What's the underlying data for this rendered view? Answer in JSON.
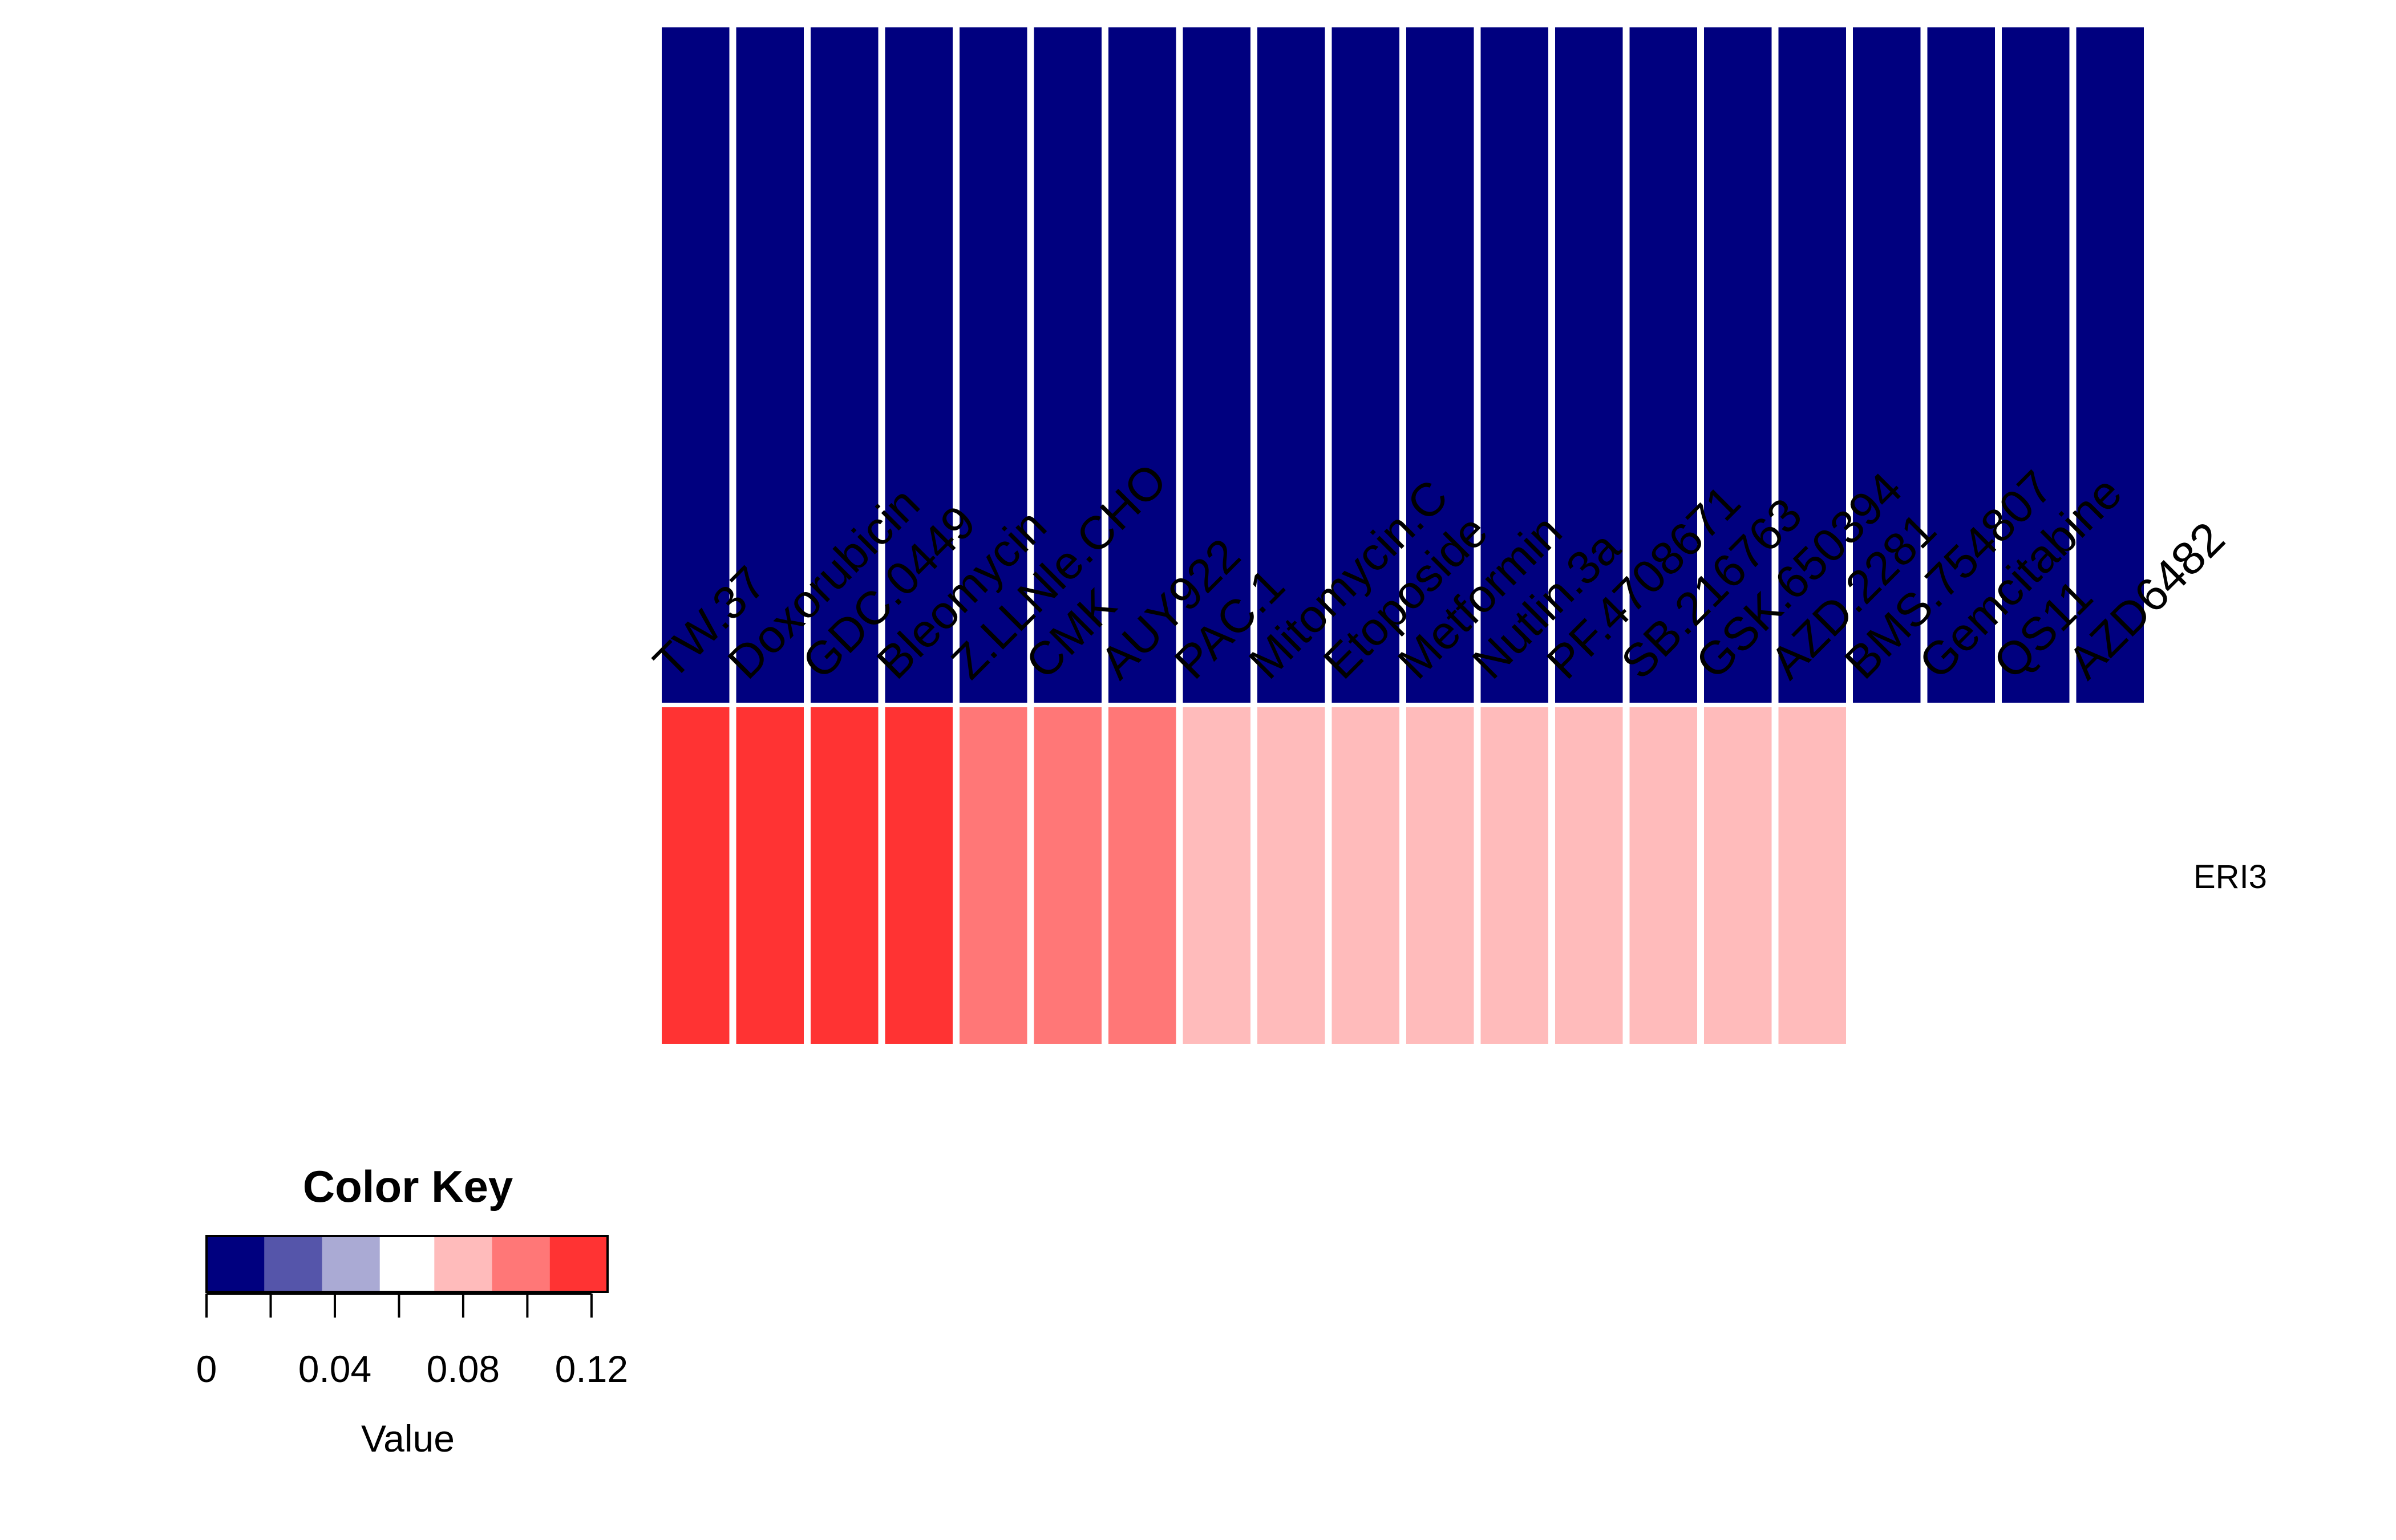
{
  "chart_data": {
    "type": "heatmap",
    "columns": [
      "TW.37",
      "Doxorubicin",
      "GDC.0449",
      "Bleomycin",
      "Z.LLNle.CHO",
      "CMK",
      "AUY922",
      "PAC.1",
      "Mitomycin.C",
      "Etoposide",
      "Metformin",
      "Nutlin.3a",
      "PF.4708671",
      "SB.216763",
      "GSK.650394",
      "AZD.2281",
      "BMS.754807",
      "Gemcitabine",
      "QS11",
      "AZD6482"
    ],
    "rows": [
      "",
      "ERI3"
    ],
    "values": [
      [
        0,
        0,
        0,
        0,
        0,
        0,
        0,
        0,
        0,
        0,
        0,
        0,
        0,
        0,
        0,
        0,
        0,
        0,
        0,
        0
      ],
      [
        0.12,
        0.12,
        0.12,
        0.12,
        0.1,
        0.1,
        0.1,
        0.08,
        0.08,
        0.08,
        0.08,
        0.08,
        0.08,
        0.08,
        0.08,
        0.08,
        null,
        null,
        null,
        null
      ]
    ],
    "value_range": [
      0,
      0.125
    ],
    "color_bins": {
      "breaks": [
        0,
        0.018,
        0.036,
        0.054,
        0.071,
        0.089,
        0.107,
        0.125
      ],
      "colors": [
        "#00007F",
        "#5555AA",
        "#AAAAD4",
        "#FFFFFF",
        "#FFBBBB",
        "#FF7777",
        "#FF3333"
      ]
    },
    "missing_color": "#FFFFFF",
    "color_key": {
      "title": "Color Key",
      "xlabel": "Value",
      "tick_values": [
        0,
        0.02,
        0.04,
        0.06,
        0.08,
        0.1,
        0.12
      ],
      "tick_labels": [
        "0",
        "0.04",
        "0.08",
        "0.12"
      ],
      "labeled_tick_values": [
        0,
        0.04,
        0.08,
        0.12
      ]
    }
  }
}
